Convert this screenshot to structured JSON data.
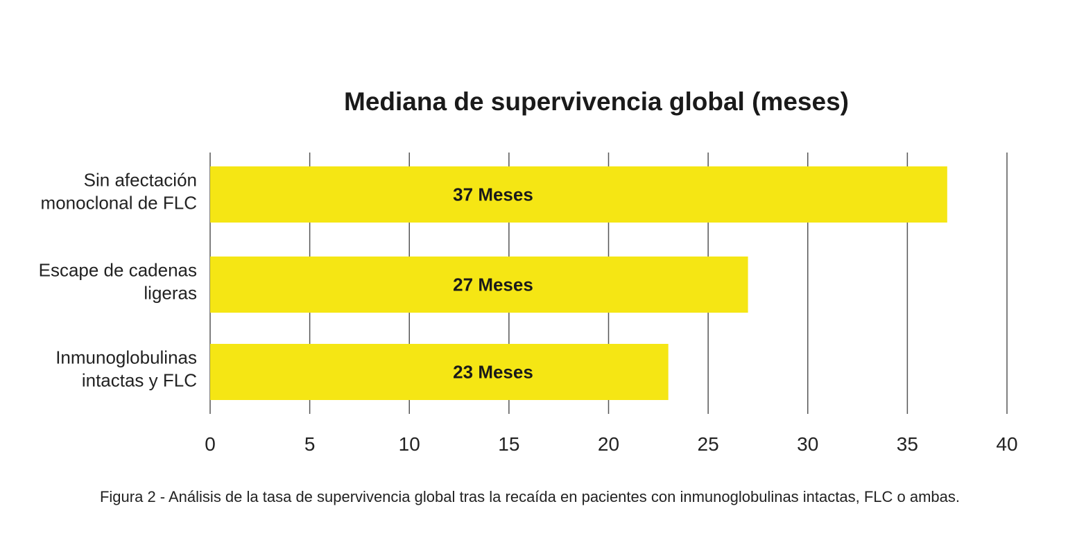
{
  "chart_data": {
    "type": "bar",
    "orientation": "horizontal",
    "title": "Mediana de supervivencia global (meses)",
    "caption": "Figura 2 - Análisis de la tasa de supervivencia global tras la recaída en pacientes con inmunoglobulinas intactas, FLC o ambas.",
    "categories": [
      [
        "Sin afectación",
        "monoclonal de FLC"
      ],
      [
        "Escape de cadenas",
        "ligeras"
      ],
      [
        "Inmunoglobulinas",
        "intactas y FLC"
      ]
    ],
    "values": [
      37,
      27,
      23
    ],
    "data_labels": [
      "37 Meses",
      "27 Meses",
      "23 Meses"
    ],
    "xlim": [
      0,
      40
    ],
    "xticks": [
      "0",
      "5",
      "10",
      "15",
      "20",
      "25",
      "30",
      "35",
      "40"
    ],
    "grid": true,
    "bar_color": "#F5E614",
    "grid_color": "#555555"
  }
}
